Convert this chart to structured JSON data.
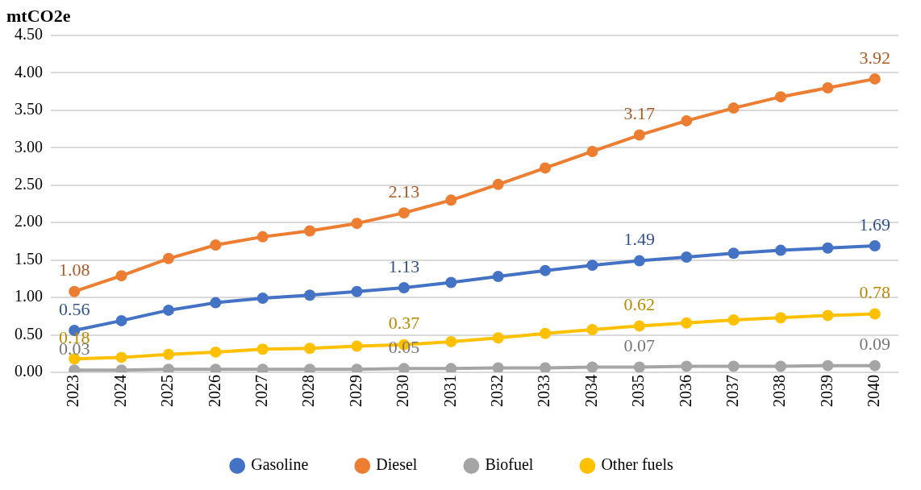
{
  "chart_data": {
    "type": "line",
    "ylabel": "mtCO2e",
    "categories": [
      "2023",
      "2024",
      "2025",
      "2026",
      "2027",
      "2028",
      "2029",
      "2030",
      "2031",
      "2032",
      "2033",
      "2034",
      "2035",
      "2036",
      "2037",
      "2038",
      "2039",
      "2040"
    ],
    "series": [
      {
        "name": "Gasoline",
        "color": "#4472c4",
        "values": [
          0.56,
          0.69,
          0.83,
          0.93,
          0.99,
          1.03,
          1.08,
          1.13,
          1.2,
          1.28,
          1.36,
          1.43,
          1.49,
          1.54,
          1.59,
          1.63,
          1.66,
          1.69
        ],
        "value_labels": [
          "0.56",
          null,
          null,
          null,
          null,
          null,
          null,
          "1.13",
          null,
          null,
          null,
          null,
          "1.49",
          null,
          null,
          null,
          null,
          "1.69"
        ]
      },
      {
        "name": "Diesel",
        "color": "#ed7d31",
        "values": [
          1.08,
          1.29,
          1.52,
          1.7,
          1.81,
          1.89,
          1.99,
          2.13,
          2.3,
          2.51,
          2.73,
          2.95,
          3.17,
          3.36,
          3.53,
          3.68,
          3.8,
          3.92
        ],
        "value_labels": [
          "1.08",
          null,
          null,
          null,
          null,
          null,
          null,
          "2.13",
          null,
          null,
          null,
          null,
          "3.17",
          null,
          null,
          null,
          null,
          "3.92"
        ]
      },
      {
        "name": "Biofuel",
        "color": "#a5a5a5",
        "values": [
          0.03,
          0.03,
          0.04,
          0.04,
          0.04,
          0.04,
          0.04,
          0.05,
          0.05,
          0.06,
          0.06,
          0.07,
          0.07,
          0.08,
          0.08,
          0.08,
          0.09,
          0.09
        ],
        "value_labels": [
          "0.03",
          null,
          null,
          null,
          null,
          null,
          null,
          "0.05",
          null,
          null,
          null,
          null,
          "0.07",
          null,
          null,
          null,
          null,
          "0.09"
        ]
      },
      {
        "name": "Other fuels",
        "color": "#ffc000",
        "values": [
          0.18,
          0.2,
          0.24,
          0.27,
          0.31,
          0.32,
          0.35,
          0.37,
          0.41,
          0.46,
          0.52,
          0.57,
          0.62,
          0.66,
          0.7,
          0.73,
          0.76,
          0.78
        ],
        "value_labels": [
          "0.18",
          null,
          null,
          null,
          null,
          null,
          null,
          "0.37",
          null,
          null,
          null,
          null,
          "0.62",
          null,
          null,
          null,
          null,
          "0.78"
        ]
      }
    ],
    "ylim": [
      0,
      4.5
    ],
    "yticks": [
      {
        "value": 0,
        "label": "0.00"
      },
      {
        "value": 0.5,
        "label": "0.50"
      },
      {
        "value": 1,
        "label": "1.00"
      },
      {
        "value": 1.5,
        "label": "1.50"
      },
      {
        "value": 2,
        "label": "2.00"
      },
      {
        "value": 2.5,
        "label": "2.50"
      },
      {
        "value": 3,
        "label": "3.00"
      },
      {
        "value": 3.5,
        "label": "3.50"
      },
      {
        "value": 4,
        "label": "4.00"
      },
      {
        "value": 4.5,
        "label": "4.50"
      }
    ],
    "grid": "y",
    "legend": "bottom",
    "marker": "circle",
    "line_style": "solid"
  }
}
